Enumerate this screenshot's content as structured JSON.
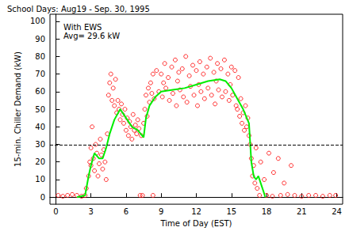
{
  "chart_data": {
    "type": "scatter",
    "title": "School Days: Aug19 - Sep. 30, 1995",
    "annotations": [
      "With EWS",
      "Avg= 29.6 kW"
    ],
    "x_label": "Time of Day (EST)",
    "y_label": "15-min. Chiller Demand (kW)",
    "xlim": [
      -0.5,
      24.5
    ],
    "xticks": [
      0,
      3,
      6,
      9,
      12,
      15,
      18,
      21,
      24
    ],
    "ylim": [
      -4,
      104
    ],
    "yticks": [
      0,
      10,
      20,
      30,
      40,
      50,
      60,
      70,
      80,
      90,
      100
    ],
    "grid": false,
    "series": [
      {
        "type": "scatter",
        "color": "#ff0000",
        "marker": "circle_open",
        "x": [
          0.2,
          0.6,
          1.0,
          1.4,
          1.8,
          2.2,
          2.5,
          2.6,
          2.8,
          2.9,
          3.0,
          3.0,
          3.1,
          3.2,
          3.3,
          3.4,
          3.5,
          3.6,
          3.7,
          3.8,
          3.9,
          4.0,
          4.1,
          4.2,
          4.3,
          4.4,
          4.5,
          4.6,
          4.7,
          4.8,
          4.9,
          5.0,
          5.1,
          5.2,
          5.3,
          5.4,
          5.5,
          5.6,
          5.7,
          5.8,
          5.9,
          6.0,
          6.1,
          6.2,
          6.3,
          6.4,
          6.5,
          6.6,
          6.7,
          6.8,
          6.9,
          7.0,
          7.1,
          7.2,
          7.3,
          7.4,
          7.5,
          7.6,
          7.7,
          7.8,
          7.9,
          8.0,
          8.1,
          8.2,
          8.3,
          8.4,
          8.3,
          8.6,
          9.0,
          9.3,
          9.6,
          9.9,
          10.2,
          10.5,
          10.8,
          11.1,
          11.4,
          11.7,
          12.0,
          12.3,
          12.6,
          12.9,
          13.2,
          13.5,
          13.8,
          14.1,
          14.4,
          14.7,
          15.0,
          15.3,
          15.6,
          8.8,
          9.1,
          9.4,
          9.7,
          10.0,
          10.3,
          10.6,
          10.9,
          11.2,
          11.5,
          11.8,
          12.1,
          12.4,
          12.7,
          13.0,
          13.3,
          13.6,
          13.9,
          14.2,
          14.5,
          14.8,
          15.1,
          15.4,
          9.2,
          10.4,
          12.2,
          13.7,
          14.9,
          15.5,
          15.7,
          15.8,
          15.9,
          16.0,
          16.1,
          16.2,
          16.3,
          16.4,
          16.5,
          16.6,
          16.7,
          16.8,
          16.9,
          17.0,
          17.1,
          17.2,
          17.5,
          17.8,
          18.2,
          18.6,
          19.0,
          19.5,
          20.1,
          17.4,
          18.0,
          18.5,
          19.2,
          19.8,
          20.4,
          21.0,
          21.6,
          22.2,
          22.8,
          23.4,
          23.9
        ],
        "values": [
          1,
          0.5,
          1,
          1.5,
          1,
          0.5,
          1,
          5,
          12,
          20,
          18,
          28,
          40,
          22,
          15,
          30,
          25,
          12,
          19,
          33,
          24,
          16,
          27,
          20,
          10,
          36,
          58,
          65,
          70,
          55,
          62,
          52,
          67,
          48,
          55,
          50,
          44,
          53,
          47,
          42,
          50,
          38,
          45,
          35,
          43,
          40,
          33,
          47,
          38,
          41,
          36,
          44,
          39,
          1,
          35,
          1,
          42,
          50,
          58,
          46,
          62,
          54,
          65,
          59,
          70,
          56,
          1,
          72,
          70,
          76,
          68,
          74,
          78,
          71,
          73,
          80,
          69,
          75,
          72,
          77,
          70,
          74,
          79,
          71,
          76,
          73,
          78,
          70,
          74,
          72,
          68,
          60,
          57,
          62,
          55,
          59,
          52,
          61,
          57,
          54,
          63,
          58,
          52,
          60,
          56,
          62,
          58,
          53,
          61,
          57,
          60,
          55,
          58,
          52,
          65,
          66,
          64,
          66,
          64,
          50,
          46,
          56,
          42,
          48,
          38,
          52,
          40,
          45,
          35,
          30,
          22,
          12,
          18,
          8,
          28,
          5,
          20,
          10,
          25,
          14,
          22,
          8,
          18,
          1,
          1,
          0.5,
          1,
          1.5,
          1,
          0.5,
          1,
          1,
          0.5,
          1,
          1
        ]
      },
      {
        "type": "line",
        "color": "#00ee00",
        "line_style": "solid",
        "x": [
          1.8,
          2.5,
          2.8,
          3.0,
          3.3,
          3.7,
          4.0,
          4.3,
          4.6,
          5.0,
          5.5,
          6.0,
          6.5,
          7.0,
          7.5,
          7.7,
          8.0,
          8.5,
          9.0,
          10.0,
          11.0,
          12.0,
          13.0,
          14.0,
          14.5,
          15.0,
          15.5,
          16.0,
          16.5,
          16.7,
          16.9,
          17.1,
          17.3,
          17.6,
          17.9
        ],
        "values": [
          0,
          1,
          12,
          18,
          25,
          22,
          22,
          28,
          36,
          44,
          50,
          45,
          40,
          38,
          34,
          45,
          52,
          57,
          60,
          61,
          62,
          64,
          66,
          67,
          66,
          62,
          56,
          50,
          42,
          20,
          12,
          10,
          12,
          6,
          0
        ]
      },
      {
        "type": "line",
        "color": "#000000",
        "line_style": "dashed",
        "x": [
          -0.5,
          24.5
        ],
        "values": [
          29.6,
          29.6
        ]
      }
    ]
  }
}
